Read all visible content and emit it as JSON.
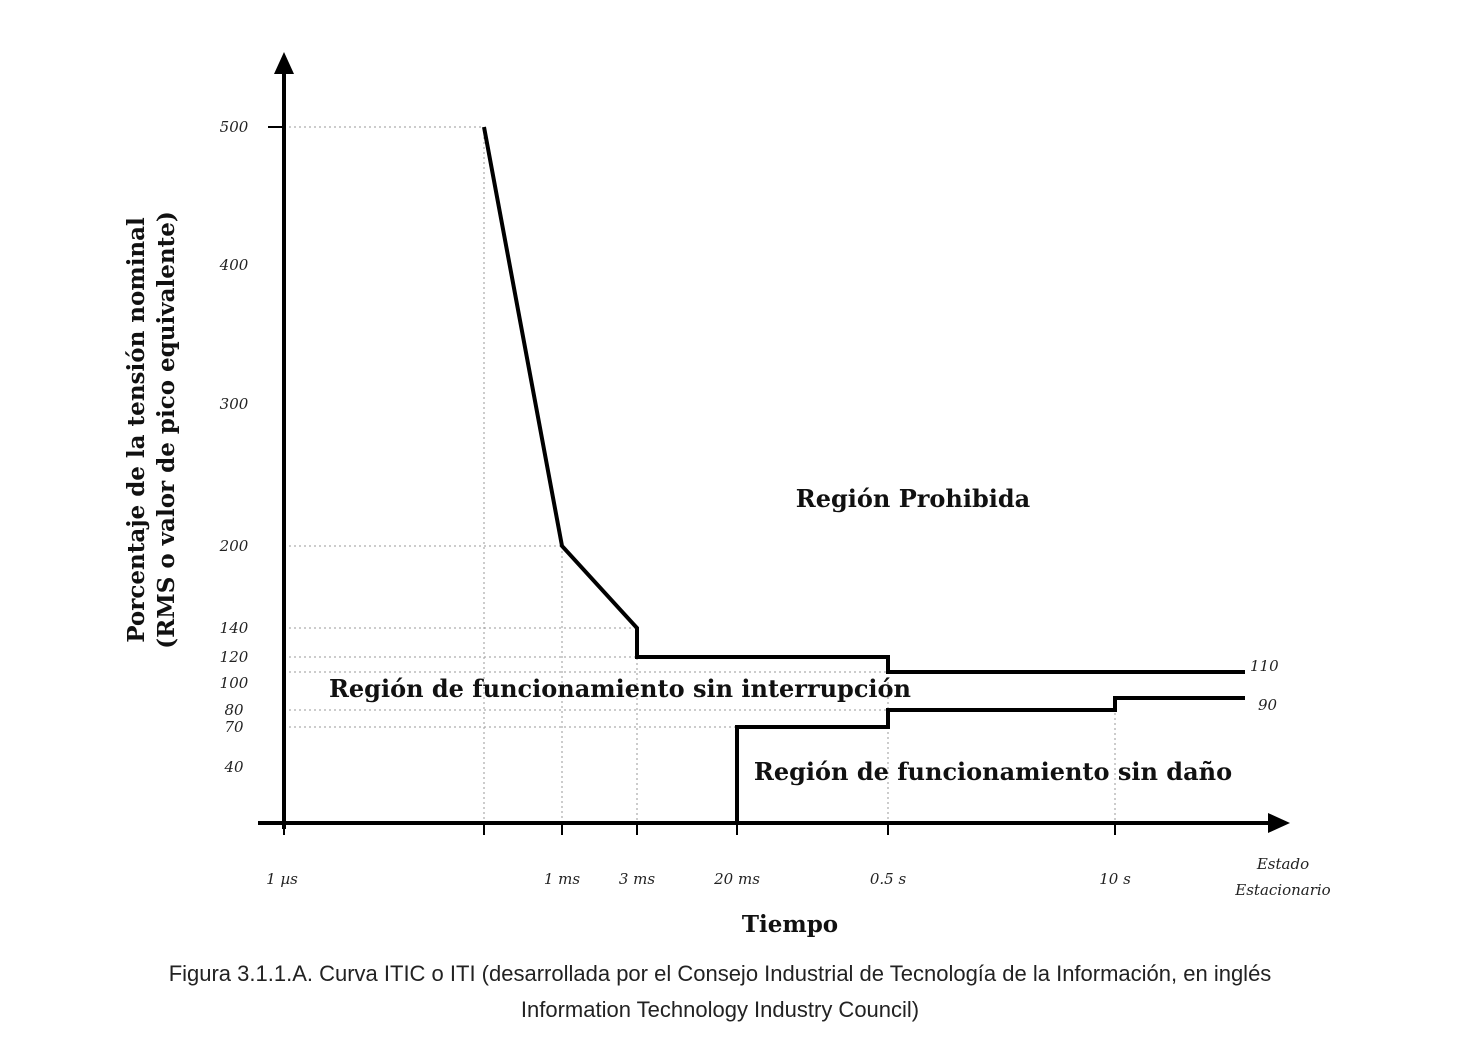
{
  "chart_data": {
    "type": "line",
    "xlabel": "Tiempo",
    "ylabel_line1": "Porcentaje de la tensión nominal",
    "ylabel_line2": "(RMS o valor de pico equivalente)",
    "y_ticks": [
      500,
      400,
      300,
      200,
      140,
      120,
      100,
      80,
      70,
      40
    ],
    "x_ticks": [
      "1 µs",
      "1 ms",
      "3 ms",
      "20 ms",
      "0.5 s",
      "10 s"
    ],
    "x_tick_last": [
      "Estado",
      "Estacionario"
    ],
    "series": [
      {
        "points": [
          [
            "",
            500
          ],
          [
            "1 ms",
            200
          ],
          [
            "3 ms",
            140
          ],
          [
            "3 ms",
            120
          ],
          [
            "0.5 s",
            120
          ],
          [
            "0.5 s",
            110
          ],
          [
            "Estado Estacionario",
            110
          ]
        ],
        "end_label": "110"
      },
      {
        "points": [
          [
            "1 µs",
            0
          ],
          [
            "20 ms",
            0
          ],
          [
            "20 ms",
            70
          ],
          [
            "0.5 s",
            70
          ],
          [
            "0.5 s",
            80
          ],
          [
            "10 s",
            80
          ],
          [
            "10 s",
            90
          ],
          [
            "Estado Estacionario",
            90
          ]
        ],
        "end_label": "90"
      }
    ],
    "annotations": {
      "prohibited": "Región Prohibida",
      "no_interruption": "Región de funcionamiento sin interrupción",
      "no_damage": "Región de funcionamiento sin daño"
    }
  },
  "caption": {
    "line1": "Figura 3.1.1.A. Curva ITIC o ITI (desarrollada por el Consejo Industrial de Tecnología de la Información,  en inglés",
    "line2": "Information Technology Industry Council)"
  }
}
